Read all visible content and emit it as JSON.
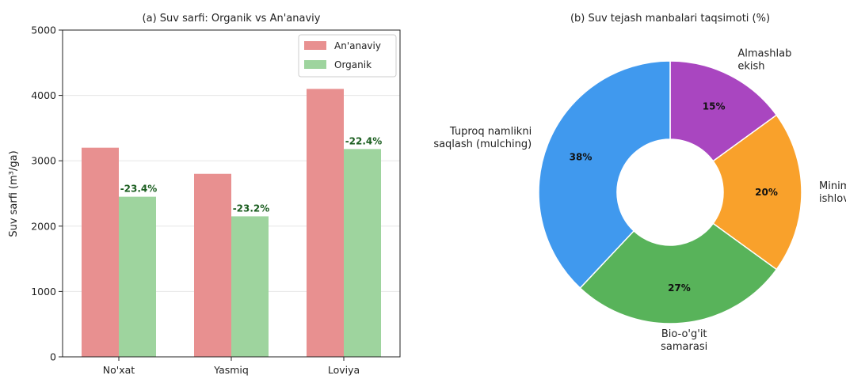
{
  "chart_data": [
    {
      "type": "bar",
      "title": "(a) Suv sarfi: Organik vs An'anaviy",
      "ylabel": "Suv sarfi (m³/ga)",
      "xlabel": "",
      "categories": [
        "No'xat",
        "Yasmiq",
        "Loviya"
      ],
      "ylim": [
        0,
        5000
      ],
      "yticks": [
        "0",
        "1000",
        "2000",
        "3000",
        "4000",
        "5000"
      ],
      "grid": true,
      "legend": "top-right",
      "series": [
        {
          "name": "An'anaviy",
          "values": [
            3200,
            2800,
            4100
          ],
          "color": "#e89090"
        },
        {
          "name": "Organik",
          "values": [
            2450,
            2150,
            3180
          ],
          "color": "#9ed49e"
        }
      ],
      "annotations": [
        "-23.4%",
        "-23.2%",
        "-22.4%"
      ]
    },
    {
      "type": "pie",
      "title": "(b) Suv tejash manbalari taqsimoti (%)",
      "labels": [
        "Almashlab ekish",
        "Minimal ishlov",
        "Bio-o'g'it samarasi",
        "Tuproq namlikni saqlash (mulching)"
      ],
      "label_lines": [
        [
          "Almashlab",
          "ekish"
        ],
        [
          "Minimal",
          "ishlov"
        ],
        [
          "Bio-o'g'it",
          "samarasi"
        ],
        [
          "Tuproq namlikni",
          "saqlash (mulching)"
        ]
      ],
      "values": [
        15,
        20,
        27,
        38
      ],
      "value_labels": [
        "15%",
        "20%",
        "27%",
        "38%"
      ],
      "colors": [
        "#a946c0",
        "#f9a12b",
        "#58b35a",
        "#4099ee"
      ]
    }
  ]
}
